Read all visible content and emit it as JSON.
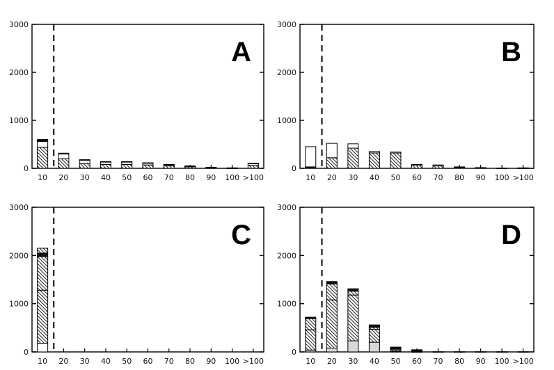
{
  "colors": {
    "axis": "#000000",
    "bar_outline": "#000000",
    "hatch": "#222222",
    "light_fill": "#d9d9d9",
    "background": "#ffffff"
  },
  "chart_data": [
    {
      "type": "bar",
      "stacked": true,
      "panel_label": "A",
      "categories": [
        "10",
        "20",
        "30",
        "40",
        "50",
        "60",
        "70",
        "80",
        "90",
        "100",
        ">100"
      ],
      "ylim": [
        0,
        3000
      ],
      "yticks": [
        0,
        1000,
        2000,
        3000
      ],
      "threshold_after_category": "10",
      "series": [
        {
          "pattern": "hatch",
          "values": [
            440,
            200,
            100,
            80,
            80,
            70,
            50,
            30,
            10,
            5,
            60
          ]
        },
        {
          "pattern": "open",
          "values": [
            120,
            100,
            70,
            50,
            50,
            40,
            25,
            15,
            10,
            5,
            40
          ]
        },
        {
          "pattern": "solid",
          "values": [
            40,
            15,
            10,
            10,
            10,
            5,
            5,
            5,
            0,
            0,
            5
          ]
        }
      ]
    },
    {
      "type": "bar",
      "stacked": true,
      "panel_label": "B",
      "categories": [
        "10",
        "20",
        "30",
        "40",
        "50",
        "60",
        "70",
        "80",
        "90",
        "100",
        ">100"
      ],
      "ylim": [
        0,
        3000
      ],
      "yticks": [
        0,
        1000,
        2000,
        3000
      ],
      "threshold_after_category": "10",
      "series": [
        {
          "pattern": "solid",
          "values": [
            30,
            0,
            0,
            0,
            0,
            0,
            0,
            0,
            0,
            0,
            0
          ]
        },
        {
          "pattern": "hatch",
          "values": [
            0,
            220,
            420,
            320,
            320,
            60,
            50,
            20,
            10,
            5,
            5
          ]
        },
        {
          "pattern": "open",
          "values": [
            420,
            300,
            90,
            30,
            20,
            20,
            20,
            10,
            5,
            0,
            5
          ]
        }
      ]
    },
    {
      "type": "bar",
      "stacked": true,
      "panel_label": "C",
      "categories": [
        "10",
        "20",
        "30",
        "40",
        "50",
        "60",
        "70",
        "80",
        "90",
        "100",
        ">100"
      ],
      "ylim": [
        0,
        3000
      ],
      "yticks": [
        0,
        1000,
        2000,
        3000
      ],
      "threshold_after_category": "10",
      "series": [
        {
          "pattern": "open",
          "values": [
            180,
            0,
            0,
            0,
            0,
            0,
            0,
            0,
            0,
            0,
            0
          ]
        },
        {
          "pattern": "hatch",
          "values": [
            1100,
            0,
            0,
            0,
            0,
            0,
            0,
            0,
            0,
            0,
            0
          ]
        },
        {
          "pattern": "hatch",
          "values": [
            700,
            0,
            0,
            0,
            0,
            0,
            0,
            0,
            0,
            0,
            0
          ]
        },
        {
          "pattern": "solid",
          "values": [
            70,
            0,
            0,
            0,
            0,
            0,
            0,
            0,
            0,
            0,
            0
          ]
        },
        {
          "pattern": "hatch",
          "values": [
            100,
            0,
            0,
            0,
            0,
            0,
            0,
            0,
            0,
            0,
            0
          ]
        }
      ]
    },
    {
      "type": "bar",
      "stacked": true,
      "panel_label": "D",
      "categories": [
        "10",
        "20",
        "30",
        "40",
        "50",
        "60",
        "70",
        "80",
        "90",
        "100",
        ">100"
      ],
      "ylim": [
        0,
        3000
      ],
      "yticks": [
        0,
        1000,
        2000,
        3000
      ],
      "threshold_after_category": "10",
      "series": [
        {
          "pattern": "light",
          "values": [
            40,
            80,
            230,
            200,
            10,
            5,
            5,
            5,
            5,
            5,
            5
          ]
        },
        {
          "pattern": "hatch",
          "values": [
            420,
            1000,
            950,
            270,
            30,
            10,
            0,
            0,
            0,
            0,
            0
          ]
        },
        {
          "pattern": "hatch",
          "values": [
            230,
            330,
            80,
            40,
            20,
            10,
            0,
            0,
            0,
            0,
            0
          ]
        },
        {
          "pattern": "solid",
          "values": [
            30,
            50,
            50,
            50,
            40,
            20,
            0,
            0,
            0,
            0,
            0
          ]
        }
      ]
    }
  ]
}
